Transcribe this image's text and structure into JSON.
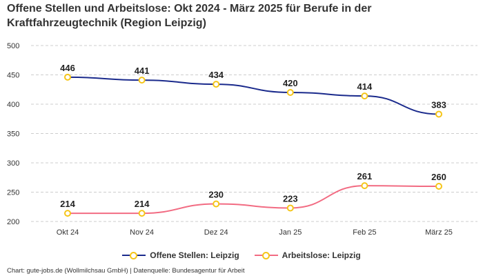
{
  "chart_data": {
    "type": "line",
    "title": "Offene Stellen und Arbeitslose: Okt 2024 - März 2025 für Berufe in der Kraftfahrzeugtechnik (Region Leipzig)",
    "categories": [
      "Okt 24",
      "Nov 24",
      "Dez 24",
      "Jan 25",
      "Feb 25",
      "März 25"
    ],
    "series": [
      {
        "name": "Offene Stellen: Leipzig",
        "values": [
          446,
          441,
          434,
          420,
          414,
          383
        ],
        "color": "#1a2a8c"
      },
      {
        "name": "Arbeitslose: Leipzig",
        "values": [
          214,
          214,
          230,
          223,
          261,
          260
        ],
        "color": "#f26b82"
      }
    ],
    "yticks": [
      200,
      250,
      300,
      350,
      400,
      450,
      500
    ],
    "ylim": [
      200,
      500
    ],
    "xlabel": "",
    "ylabel": "",
    "grid": true,
    "legend": "bottom-center",
    "marker_color": "#f5c518"
  },
  "footer": "Chart: gute-jobs.de (Wollmilchsau GmbH) | Datenquelle: Bundesagentur für Arbeit"
}
